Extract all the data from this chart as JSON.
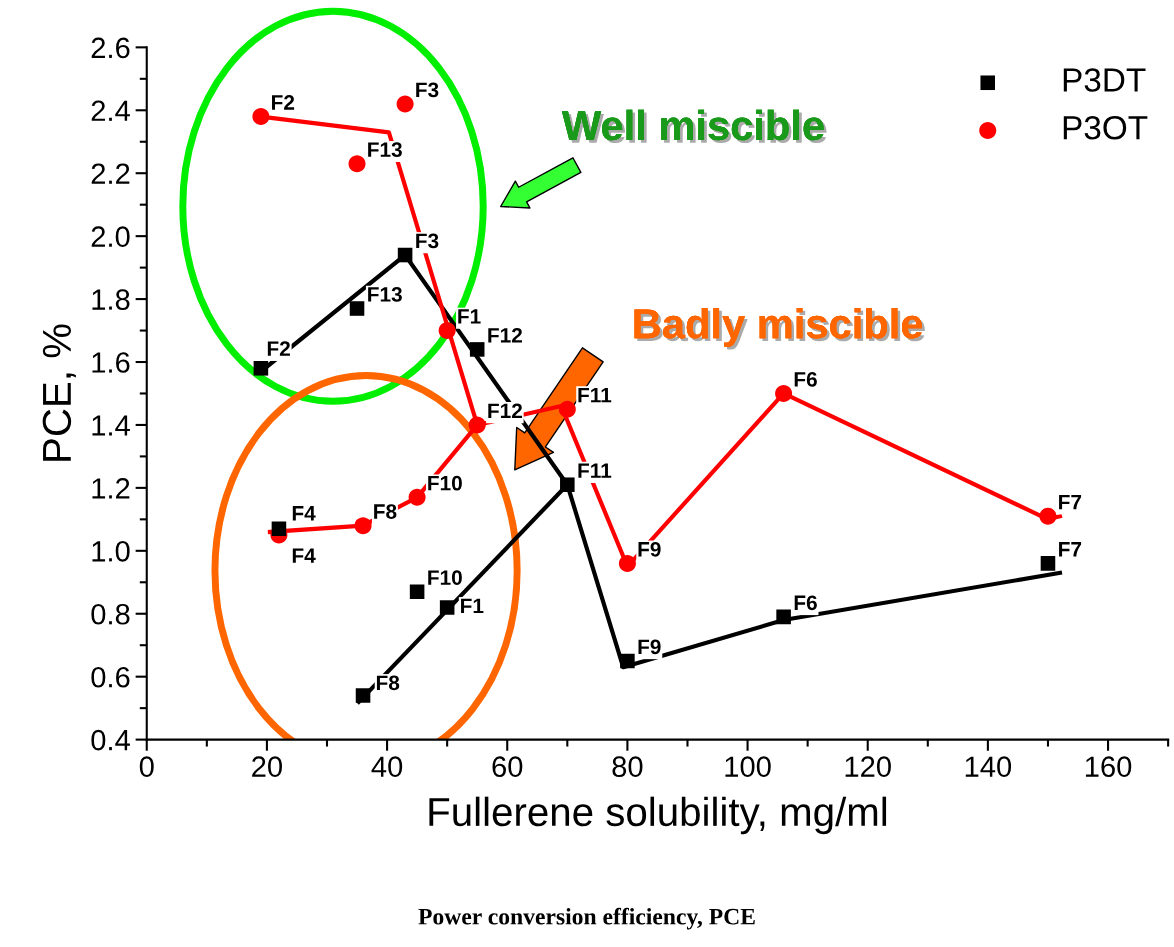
{
  "chart_data": {
    "type": "scatter",
    "xlabel": "Fullerene solubility, mg/ml",
    "ylabel": "PCE, %",
    "xlim": [
      0,
      170
    ],
    "xticks": [
      0,
      20,
      40,
      60,
      80,
      100,
      120,
      140,
      160
    ],
    "ylim": [
      0.4,
      2.6
    ],
    "yticks": [
      {
        "value": 0.4,
        "label": "0.4"
      },
      {
        "value": 0.6,
        "label": "0.6"
      },
      {
        "value": 0.8,
        "label": "0.8"
      },
      {
        "value": 1.0,
        "label": "1.0"
      },
      {
        "value": 1.2,
        "label": "1.2"
      },
      {
        "value": 1.4,
        "label": "1.4"
      },
      {
        "value": 1.6,
        "label": "1.6"
      },
      {
        "value": 1.8,
        "label": "1.8"
      },
      {
        "value": 2.0,
        "label": "2.0"
      },
      {
        "value": 2.2,
        "label": "2.2"
      },
      {
        "value": 2.4,
        "label": "2.4"
      },
      {
        "value": 2.6,
        "label": "2.6"
      }
    ],
    "grid": false,
    "legend": "top right",
    "series": [
      {
        "type": "line",
        "color": "#000000",
        "marker": "none",
        "line_style": "solid",
        "x": [
          19,
          43,
          70,
          79.3,
          106,
          152
        ],
        "values": [
          1.57,
          1.94,
          1.21,
          0.63,
          0.78,
          0.93
        ]
      },
      {
        "type": "line",
        "color": "#000000",
        "marker": "none",
        "line_style": "solid",
        "x": [
          35.3,
          70
        ],
        "values": [
          0.52,
          1.21
        ]
      },
      {
        "type": "line",
        "color": "#ff0000",
        "marker": "none",
        "line_style": "solid",
        "x": [
          19,
          40.3,
          55,
          69,
          80,
          106,
          150,
          152
        ],
        "values": [
          2.38,
          2.33,
          1.4,
          1.46,
          0.95,
          1.5,
          1.1,
          1.11
        ]
      },
      {
        "type": "line",
        "color": "#ff0000",
        "marker": "none",
        "line_style": "solid",
        "x": [
          20.5,
          36,
          45,
          55
        ],
        "values": [
          1.06,
          1.08,
          1.17,
          1.4
        ]
      },
      {
        "name": "P3DT",
        "color": "#000000",
        "marker": "square",
        "x": [
          19,
          35,
          43,
          50,
          55,
          70,
          22,
          36,
          45,
          80,
          106,
          150
        ],
        "values": [
          1.58,
          1.77,
          1.94,
          0.82,
          1.64,
          1.21,
          1.07,
          0.54,
          0.87,
          0.65,
          0.79,
          0.96
        ]
      },
      {
        "name": "P3OT",
        "color": "#ff0000",
        "marker": "circle",
        "x": [
          19,
          35,
          43,
          50,
          55,
          70,
          22,
          36,
          45,
          80,
          106,
          150
        ],
        "values": [
          2.38,
          2.23,
          2.42,
          1.7,
          1.4,
          1.45,
          1.05,
          1.08,
          1.17,
          0.96,
          1.5,
          1.11
        ]
      }
    ],
    "annotations": [
      {
        "text": "F2",
        "x": 19,
        "y": 1.58
      },
      {
        "text": "F13",
        "x": 35,
        "y": 1.77
      },
      {
        "text": "F3",
        "x": 43,
        "y": 1.94
      },
      {
        "text": "F1",
        "x": 50,
        "y": 0.82
      },
      {
        "text": "F12",
        "x": 55,
        "y": 1.64
      },
      {
        "text": "F11",
        "x": 70,
        "y": 1.21
      },
      {
        "text": "F4",
        "x": 22,
        "y": 1.07
      },
      {
        "text": "F8",
        "x": 36,
        "y": 0.54
      },
      {
        "text": "F10",
        "x": 45,
        "y": 0.87
      },
      {
        "text": "F9",
        "x": 80,
        "y": 0.65
      },
      {
        "text": "F6",
        "x": 106,
        "y": 0.79
      },
      {
        "text": "F7",
        "x": 150,
        "y": 0.96
      },
      {
        "text": "F2",
        "x": 19,
        "y": 2.38
      },
      {
        "text": "F13",
        "x": 35,
        "y": 2.23
      },
      {
        "text": "F3",
        "x": 43,
        "y": 2.42
      },
      {
        "text": "F1",
        "x": 50,
        "y": 1.7
      },
      {
        "text": "F12",
        "x": 55,
        "y": 1.4
      },
      {
        "text": "F11",
        "x": 70,
        "y": 1.45
      },
      {
        "text": "F4",
        "x": 22,
        "y": 1.05
      },
      {
        "text": "F8",
        "x": 36,
        "y": 1.08
      },
      {
        "text": "F10",
        "x": 45,
        "y": 1.17
      },
      {
        "text": "F9",
        "x": 80,
        "y": 0.96
      },
      {
        "text": "F6",
        "x": 106,
        "y": 1.5
      },
      {
        "text": "F7",
        "x": 150,
        "y": 1.11
      },
      "Well miscible",
      "Badly miscible",
      "Power conversion efficiency, PCE"
    ]
  }
}
